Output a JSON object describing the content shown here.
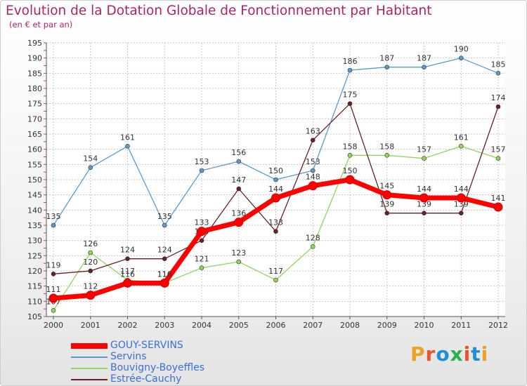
{
  "title": "Evolution de la Dotation Globale de Fonctionnement par Habitant",
  "subtitle": "(en € et par an)",
  "brand": "Proxiti",
  "colors": {
    "title": "#b0235f",
    "grid": "#c8c8c8",
    "axis": "#555555",
    "tick_marks": "#d0405a"
  },
  "chart_data": {
    "type": "line",
    "title": "Evolution de la Dotation Globale de Fonctionnement par Habitant",
    "subtitle": "(en € et par an)",
    "xlabel": "",
    "ylabel": "",
    "x": [
      "2000",
      "2001",
      "2002",
      "2003",
      "2004",
      "2005",
      "2006",
      "2007",
      "2008",
      "2009",
      "2010",
      "2011",
      "2012"
    ],
    "ylim": [
      105,
      195
    ],
    "yticks": [
      105,
      110,
      115,
      120,
      125,
      130,
      135,
      140,
      145,
      150,
      155,
      160,
      165,
      170,
      175,
      180,
      185,
      190,
      195
    ],
    "grid": true,
    "legend_position": "bottom-left",
    "series": [
      {
        "name": "Servins",
        "color": "#5a9bcf",
        "values": [
          135,
          154,
          161,
          135,
          153,
          156,
          150,
          153,
          186,
          187,
          187,
          190,
          185
        ]
      },
      {
        "name": "Bouvigny-Boyeffles",
        "color": "#8fd65a",
        "values": [
          107,
          126,
          117,
          116,
          121,
          123,
          117,
          128,
          158,
          158,
          157,
          161,
          157
        ]
      },
      {
        "name": "Estrée-Cauchy",
        "color": "#6b1f24",
        "values": [
          119,
          120,
          124,
          124,
          130,
          147,
          133,
          163,
          175,
          139,
          139,
          139,
          174
        ]
      },
      {
        "name": "GOUY-SERVINS",
        "color": "#ff0000",
        "values": [
          111,
          112,
          116,
          116,
          133,
          136,
          144,
          148,
          150,
          145,
          144,
          144,
          141
        ]
      }
    ],
    "labels": {
      "Servins": [
        "135",
        "154",
        "161",
        "135",
        "153",
        "156",
        "150",
        "153",
        "186",
        "187",
        "187",
        "190",
        "185"
      ],
      "Bouvigny-Boyeffles": [
        "107",
        "126",
        "117",
        "116",
        "121",
        "123",
        "117",
        "128",
        "158",
        "158",
        "157",
        "161",
        "157"
      ],
      "Estrée-Cauchy": [
        "119",
        "120",
        "124",
        "124",
        "130",
        "147",
        "133",
        "163",
        "175",
        "139",
        "139",
        "139",
        "174"
      ],
      "GOUY-SERVINS": [
        "111",
        "112",
        "116",
        "116",
        "133",
        "136",
        "144",
        "148",
        "150",
        "145",
        "144",
        "144",
        "141"
      ]
    }
  },
  "legend": [
    {
      "name": "GOUY-SERVINS",
      "color": "#ff0000"
    },
    {
      "name": "Servins",
      "color": "#5a9bcf"
    },
    {
      "name": "Bouvigny-Boyeffles",
      "color": "#8fd65a"
    },
    {
      "name": "Estrée-Cauchy",
      "color": "#6b1f24"
    }
  ]
}
